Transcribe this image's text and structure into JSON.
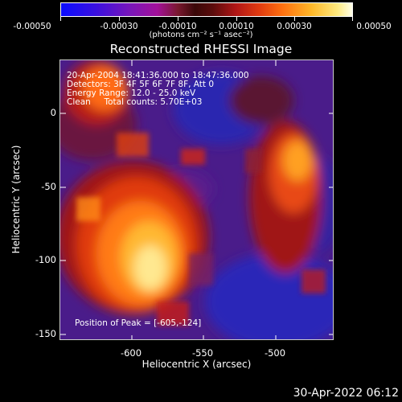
{
  "colorbar": {
    "tick_labels": [
      "-0.00050",
      "-0.00030",
      "-0.00010",
      "0.00010",
      "0.00030",
      "0.00050"
    ],
    "units": "(photons cm⁻² s⁻¹ asec⁻²)"
  },
  "title": "Reconstructed RHESSI Image",
  "info": {
    "line1": "20-Apr-2004 18:41:36.000 to 18:47:36.000",
    "line2": "Detectors: 3F 4F 5F 6F 7F 8F, Att 0",
    "line3": "Energy Range: 12.0 - 25.0 keV",
    "line4": "Clean     Total counts: 5.70E+03",
    "peak": "Position of Peak = [-605,-124]"
  },
  "axes": {
    "xlabel": "Heliocentric X (arcsec)",
    "ylabel": "Heliocentric Y (arcsec)",
    "xticks": [
      "-600",
      "-550",
      "-500"
    ],
    "yticks": [
      "0",
      "-50",
      "-100",
      "-150"
    ],
    "xlim": [
      -646,
      -506
    ],
    "ylim": [
      -157,
      26
    ]
  },
  "footer": {
    "timestamp": "30-Apr-2022 06:12"
  },
  "colors": {
    "background": "#000000",
    "low": "#0a0cff",
    "mid": "#7a16b8",
    "high": "#ffffe8"
  }
}
